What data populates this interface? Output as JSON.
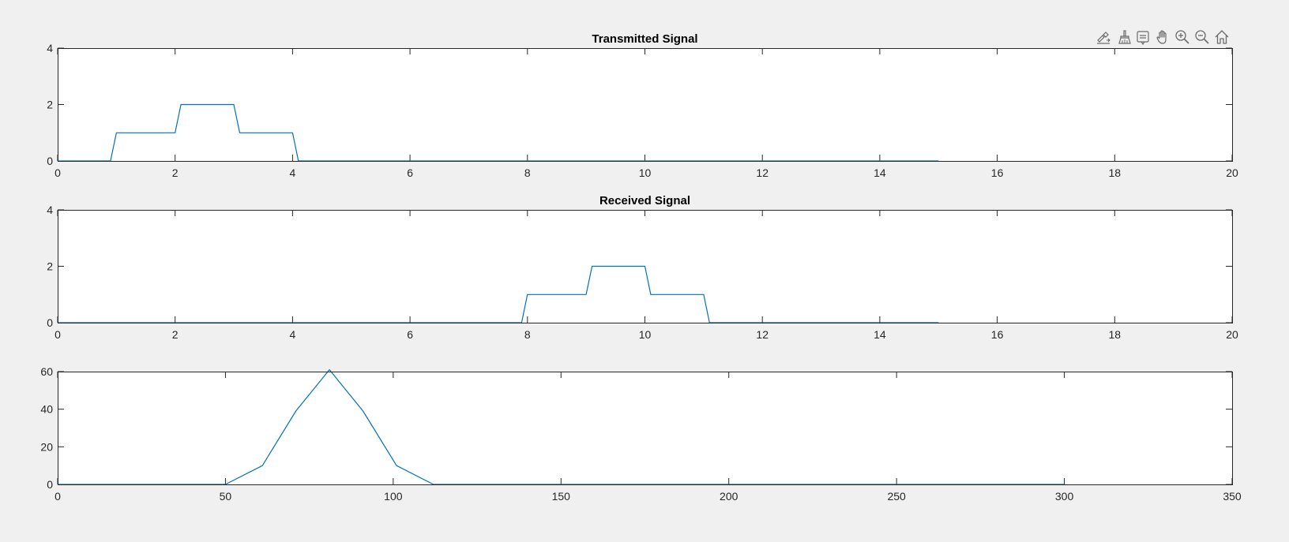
{
  "figure": {
    "background": "#f0f0f0",
    "line_color": "#0072bd"
  },
  "toolbar": {
    "icons": [
      "export-icon",
      "brush-icon",
      "data-tips-icon",
      "pan-icon",
      "zoom-in-icon",
      "zoom-out-icon",
      "home-icon"
    ]
  },
  "chart_data": [
    {
      "type": "line",
      "title": "Transmitted Signal",
      "xlabel": "",
      "ylabel": "",
      "xlim": [
        0,
        20
      ],
      "ylim": [
        0,
        4
      ],
      "xticks": [
        0,
        2,
        4,
        6,
        8,
        10,
        12,
        14,
        16,
        18,
        20
      ],
      "yticks": [
        0,
        2,
        4
      ],
      "grid": false,
      "series": [
        {
          "x": [
            0,
            0.9,
            1,
            2,
            2.1,
            3,
            3.1,
            4,
            4.1,
            15
          ],
          "y": [
            0,
            0,
            1,
            1,
            2,
            2,
            1,
            1,
            0,
            0
          ]
        }
      ]
    },
    {
      "type": "line",
      "title": "Received Signal",
      "xlabel": "",
      "ylabel": "",
      "xlim": [
        0,
        20
      ],
      "ylim": [
        0,
        4
      ],
      "xticks": [
        0,
        2,
        4,
        6,
        8,
        10,
        12,
        14,
        16,
        18,
        20
      ],
      "yticks": [
        0,
        2,
        4
      ],
      "grid": false,
      "series": [
        {
          "x": [
            0,
            7.9,
            8,
            9,
            9.1,
            10,
            10.1,
            11,
            11.1,
            15
          ],
          "y": [
            0,
            0,
            1,
            1,
            2,
            2,
            1,
            1,
            0,
            0
          ]
        }
      ]
    },
    {
      "type": "line",
      "title": "",
      "xlabel": "",
      "ylabel": "",
      "xlim": [
        0,
        350
      ],
      "ylim": [
        0,
        60
      ],
      "xticks": [
        0,
        50,
        100,
        150,
        200,
        250,
        300,
        350
      ],
      "yticks": [
        0,
        20,
        40,
        60
      ],
      "grid": false,
      "series": [
        {
          "x": [
            0,
            50,
            61,
            71,
            81,
            91,
            101,
            112,
            300
          ],
          "y": [
            0,
            0,
            10,
            39,
            61,
            39,
            10,
            0,
            0
          ]
        }
      ]
    }
  ]
}
